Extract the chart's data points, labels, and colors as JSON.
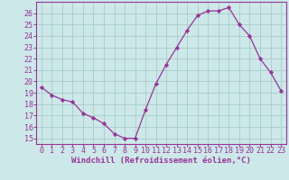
{
  "x": [
    0,
    1,
    2,
    3,
    4,
    5,
    6,
    7,
    8,
    9,
    10,
    11,
    12,
    13,
    14,
    15,
    16,
    17,
    18,
    19,
    20,
    21,
    22,
    23
  ],
  "y": [
    19.5,
    18.8,
    18.4,
    18.2,
    17.2,
    16.8,
    16.3,
    15.4,
    15.0,
    15.0,
    17.5,
    19.8,
    21.5,
    23.0,
    24.5,
    25.8,
    26.2,
    26.2,
    26.5,
    25.0,
    24.0,
    22.0,
    20.8,
    19.2
  ],
  "line_color": "#993399",
  "marker": "D",
  "marker_size": 2.2,
  "bg_color": "#cce8e8",
  "grid_color": "#aacccc",
  "xlabel": "Windchill (Refroidissement éolien,°C)",
  "xlabel_color": "#993399",
  "tick_color": "#993399",
  "ylim": [
    14.5,
    27.0
  ],
  "yticks": [
    15,
    16,
    17,
    18,
    19,
    20,
    21,
    22,
    23,
    24,
    25,
    26
  ],
  "xticks": [
    0,
    1,
    2,
    3,
    4,
    5,
    6,
    7,
    8,
    9,
    10,
    11,
    12,
    13,
    14,
    15,
    16,
    17,
    18,
    19,
    20,
    21,
    22,
    23
  ],
  "spine_color": "#993399",
  "tick_fontsize": 6.0,
  "xlabel_fontsize": 6.5
}
